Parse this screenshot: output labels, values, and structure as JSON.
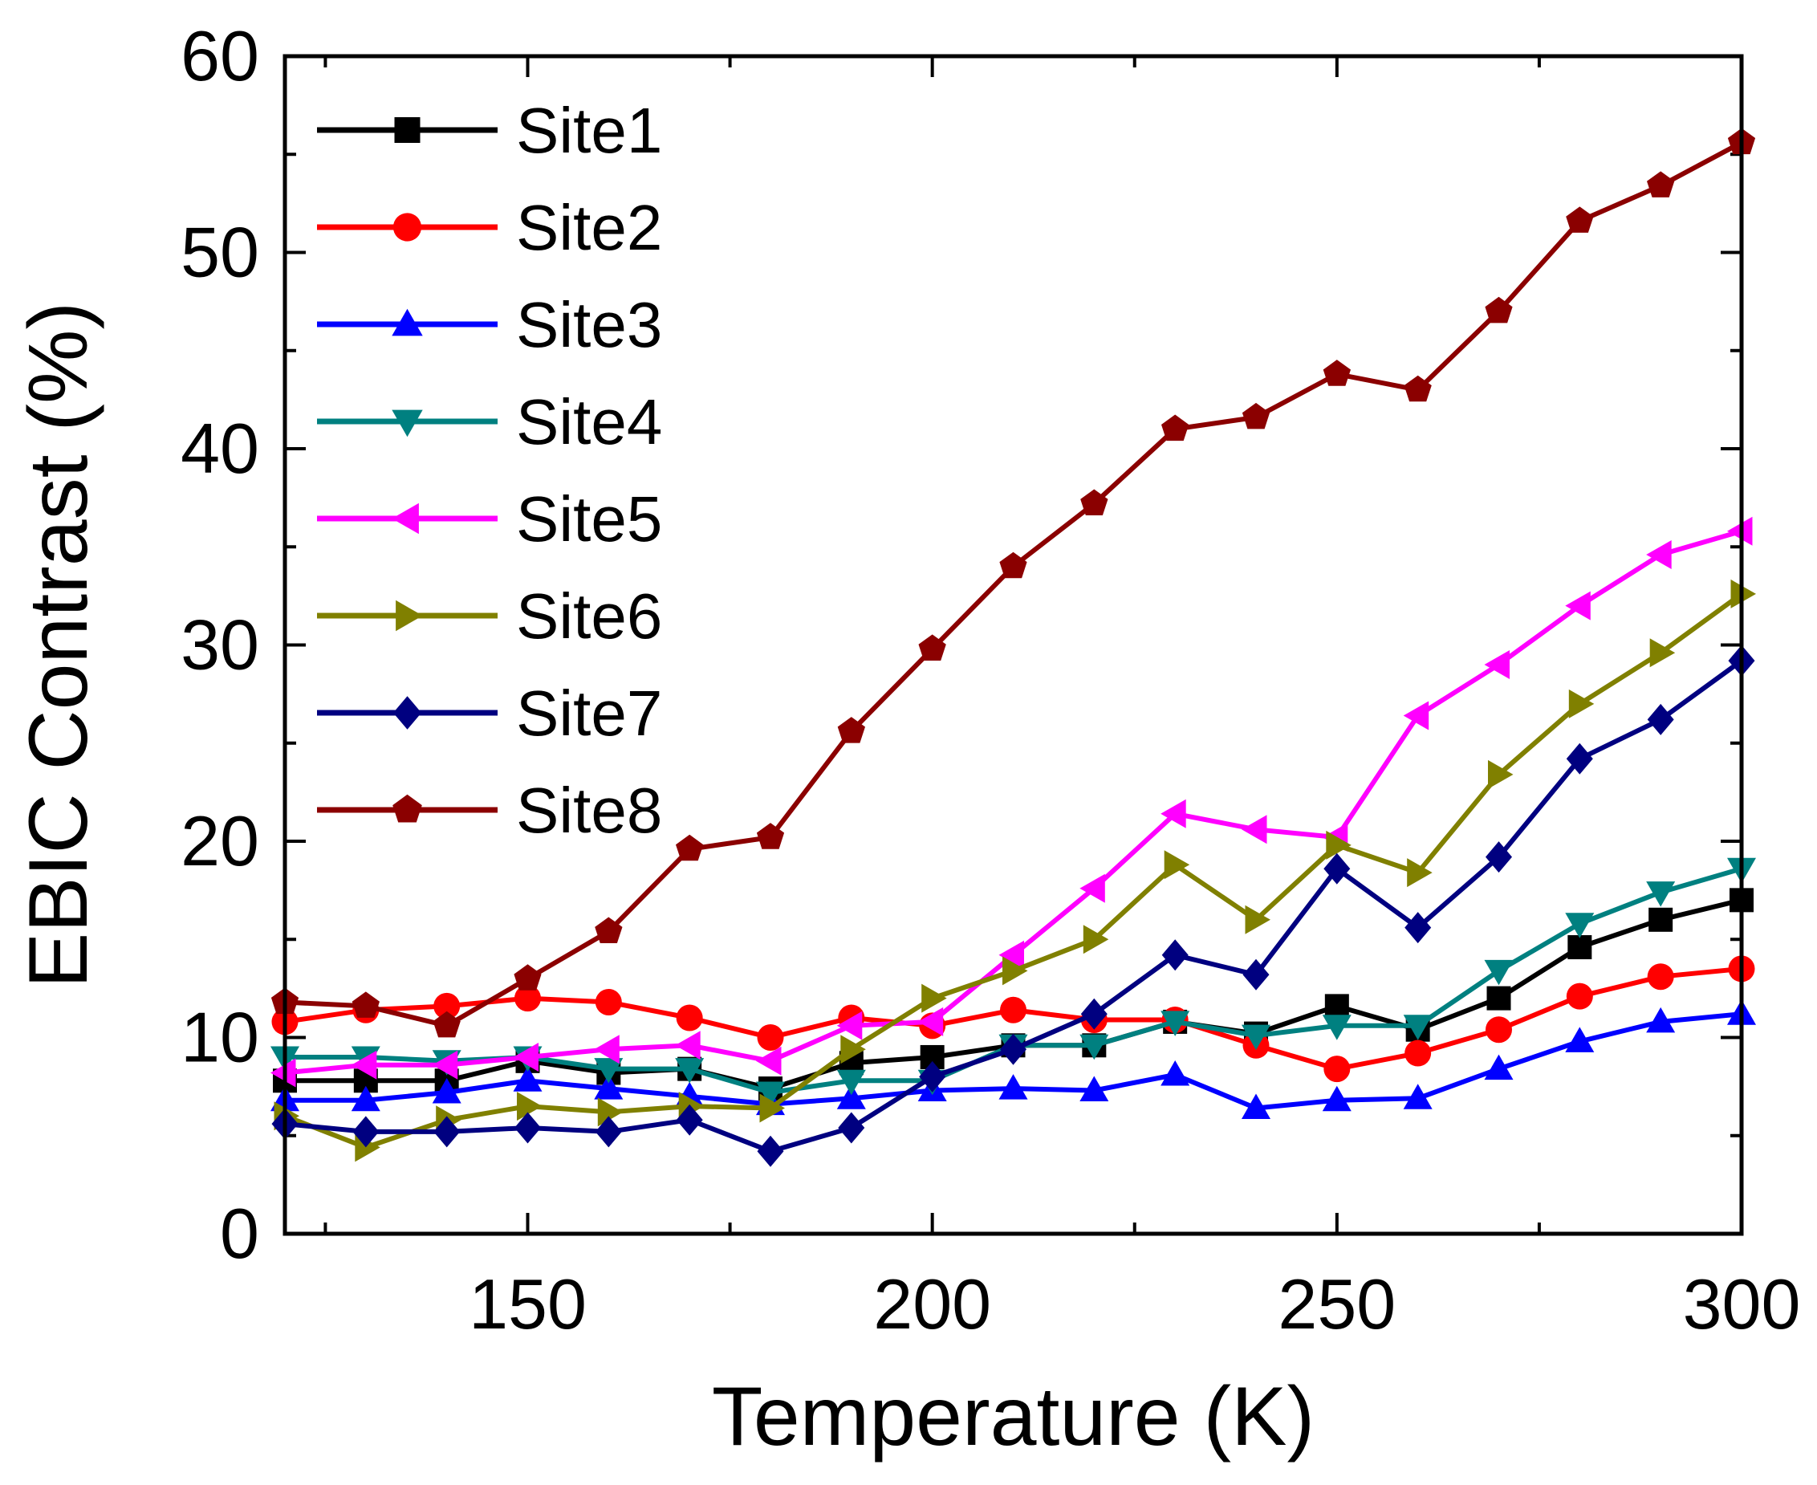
{
  "chart_data": {
    "type": "line",
    "xlabel": "Temperature (K)",
    "ylabel": "EBIC Contrast (%)",
    "xlim": [
      120,
      300
    ],
    "ylim": [
      0,
      60
    ],
    "xticks": [
      150,
      200,
      250,
      300
    ],
    "yticks": [
      0,
      10,
      20,
      30,
      40,
      50,
      60
    ],
    "grid": false,
    "legend_position": "top-left",
    "x": [
      120,
      130,
      140,
      150,
      160,
      170,
      180,
      190,
      200,
      210,
      220,
      230,
      240,
      250,
      260,
      270,
      280,
      290,
      300
    ],
    "series": [
      {
        "name": "Site1",
        "color": "#000000",
        "marker": "square",
        "values": [
          7.8,
          7.8,
          7.8,
          8.8,
          8.2,
          8.4,
          7.4,
          8.7,
          9.0,
          9.6,
          9.6,
          10.8,
          10.2,
          11.6,
          10.4,
          12.0,
          14.6,
          16.0,
          17.0
        ]
      },
      {
        "name": "Site2",
        "color": "#ff0000",
        "marker": "circle",
        "values": [
          10.8,
          11.4,
          11.6,
          12.0,
          11.8,
          11.0,
          10.0,
          11.0,
          10.6,
          11.4,
          10.9,
          10.9,
          9.6,
          8.4,
          9.2,
          10.4,
          12.1,
          13.1,
          13.5
        ]
      },
      {
        "name": "Site3",
        "color": "#0000ff",
        "marker": "triangle-up",
        "values": [
          6.8,
          6.8,
          7.2,
          7.8,
          7.4,
          7.0,
          6.6,
          6.9,
          7.3,
          7.4,
          7.3,
          8.1,
          6.4,
          6.8,
          6.9,
          8.4,
          9.8,
          10.8,
          11.2
        ]
      },
      {
        "name": "Site4",
        "color": "#008080",
        "marker": "triangle-down",
        "values": [
          9.0,
          9.0,
          8.8,
          9.0,
          8.4,
          8.4,
          7.2,
          7.8,
          7.8,
          9.6,
          9.6,
          10.8,
          10.1,
          10.6,
          10.6,
          13.4,
          15.8,
          17.4,
          18.6
        ]
      },
      {
        "name": "Site5",
        "color": "#ff00ff",
        "marker": "triangle-left",
        "values": [
          8.2,
          8.6,
          8.6,
          9.0,
          9.4,
          9.6,
          8.8,
          10.6,
          10.8,
          14.2,
          17.6,
          21.4,
          20.6,
          20.2,
          26.4,
          29.0,
          32.0,
          34.6,
          35.8
        ]
      },
      {
        "name": "Site6",
        "color": "#808000",
        "marker": "triangle-right",
        "values": [
          6.0,
          4.4,
          5.8,
          6.5,
          6.2,
          6.5,
          6.4,
          9.4,
          12.0,
          13.4,
          15.0,
          18.8,
          16.0,
          19.8,
          18.4,
          23.4,
          27.0,
          29.6,
          32.6
        ]
      },
      {
        "name": "Site7",
        "color": "#000080",
        "marker": "diamond",
        "values": [
          5.6,
          5.2,
          5.2,
          5.4,
          5.2,
          5.8,
          4.2,
          5.4,
          8.0,
          9.4,
          11.2,
          14.2,
          13.2,
          18.6,
          15.6,
          19.2,
          24.2,
          26.2,
          29.2
        ]
      },
      {
        "name": "Site8",
        "color": "#8b0000",
        "marker": "pentagon",
        "values": [
          11.8,
          11.6,
          10.6,
          13.0,
          15.4,
          19.6,
          20.2,
          25.6,
          29.8,
          34.0,
          37.2,
          41.0,
          41.6,
          43.8,
          43.0,
          47.0,
          51.6,
          53.4,
          55.6
        ]
      }
    ]
  }
}
